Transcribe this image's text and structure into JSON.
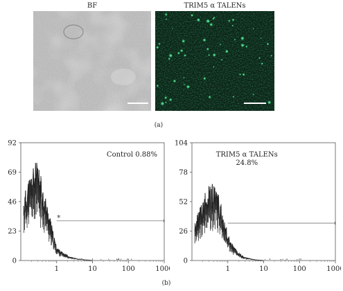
{
  "panel_a": {
    "left_label": "BF",
    "right_label": "TRIM5 α  TALENs",
    "caption": "(a)"
  },
  "panel_b": {
    "caption": "(b)"
  },
  "chart_data": [
    {
      "type": "area",
      "x_scale": "log",
      "xlim": [
        0.1,
        1000
      ],
      "ylim": [
        0,
        92
      ],
      "x_ticks": [
        "1",
        "10",
        "100",
        "1000"
      ],
      "y_ticks": [
        "0",
        "23",
        "46",
        "69",
        "92"
      ],
      "annotation": "Control 0.88%",
      "gate_marker": "*",
      "gate_range": [
        1,
        1000
      ],
      "gate_level": 31,
      "series": [
        {
          "x": [
            0.12,
            0.15,
            0.18,
            0.22,
            0.26,
            0.3,
            0.35,
            0.4,
            0.45,
            0.5,
            0.6,
            0.7,
            0.8,
            0.9,
            1.0,
            1.2,
            1.5,
            1.8,
            2.2,
            2.7,
            3.3,
            4,
            5,
            6,
            8,
            10
          ],
          "values": [
            40,
            50,
            55,
            60,
            63,
            62,
            56,
            50,
            45,
            40,
            32,
            25,
            18,
            13,
            9,
            7,
            5,
            4,
            3,
            2,
            1.5,
            1,
            1,
            0.5,
            0.3,
            0
          ]
        }
      ]
    },
    {
      "type": "area",
      "x_scale": "log",
      "xlim": [
        0.1,
        1000
      ],
      "ylim": [
        0,
        104
      ],
      "x_ticks": [
        "1",
        "10",
        "100",
        "1000"
      ],
      "y_ticks": [
        "0",
        "26",
        "52",
        "78",
        "104"
      ],
      "annotation": "TRIM5 α  TALENs\n24.8%",
      "gate_range": [
        1,
        1000
      ],
      "gate_level": 33,
      "series": [
        {
          "x": [
            0.12,
            0.15,
            0.18,
            0.22,
            0.26,
            0.3,
            0.35,
            0.4,
            0.45,
            0.5,
            0.6,
            0.7,
            0.8,
            0.9,
            1.0,
            1.2,
            1.5,
            1.8,
            2.2,
            2.7,
            3.3,
            4,
            5,
            6,
            8,
            10
          ],
          "values": [
            28,
            35,
            42,
            48,
            52,
            55,
            56,
            56,
            54,
            52,
            45,
            38,
            32,
            26,
            20,
            15,
            10,
            7,
            5,
            3,
            2,
            1.5,
            1,
            0.5,
            0.3,
            0
          ]
        }
      ]
    }
  ]
}
